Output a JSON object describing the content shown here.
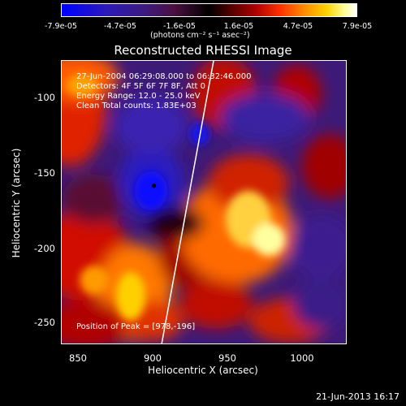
{
  "colorbar": {
    "ticks": [
      "-7.9e-05",
      "-4.7e-05",
      "-1.6e-05",
      "1.6e-05",
      "4.7e-05",
      "7.9e-05"
    ],
    "unit": "(photons cm⁻² s⁻¹ asec⁻²)",
    "range": [
      -7.9e-05,
      7.9e-05
    ]
  },
  "chart_data": {
    "type": "heatmap",
    "title": "Reconstructed RHESSI Image",
    "xlabel": "Heliocentric X (arcsec)",
    "ylabel": "Heliocentric Y (arcsec)",
    "xlim": [
      838,
      1030
    ],
    "ylim": [
      -270,
      -79
    ],
    "xticks": [
      "850",
      "900",
      "950",
      "1000"
    ],
    "yticks": [
      "-100",
      "-150",
      "-200",
      "-250"
    ],
    "annotations": {
      "time": "27-Jun-2004 06:29:08.000 to 06:32:46.000",
      "detectors": "Detectors: 4F 5F 6F 7F 8F, Att 0",
      "energy": "Energy Range: 12.0 - 25.0 keV",
      "clean": "Clean    Total counts: 1.83E+03",
      "peak": "Position of Peak = [978,-196]"
    },
    "peak": [
      978,
      -196
    ],
    "min_marker": [
      900,
      -163
    ],
    "limb_line": [
      [
        905,
        -270
      ],
      [
        940,
        -79
      ]
    ]
  },
  "footer": {
    "date": "21-Jun-2013 16:17"
  },
  "colors": {
    "background": "#000000",
    "text": "#ffffff"
  }
}
